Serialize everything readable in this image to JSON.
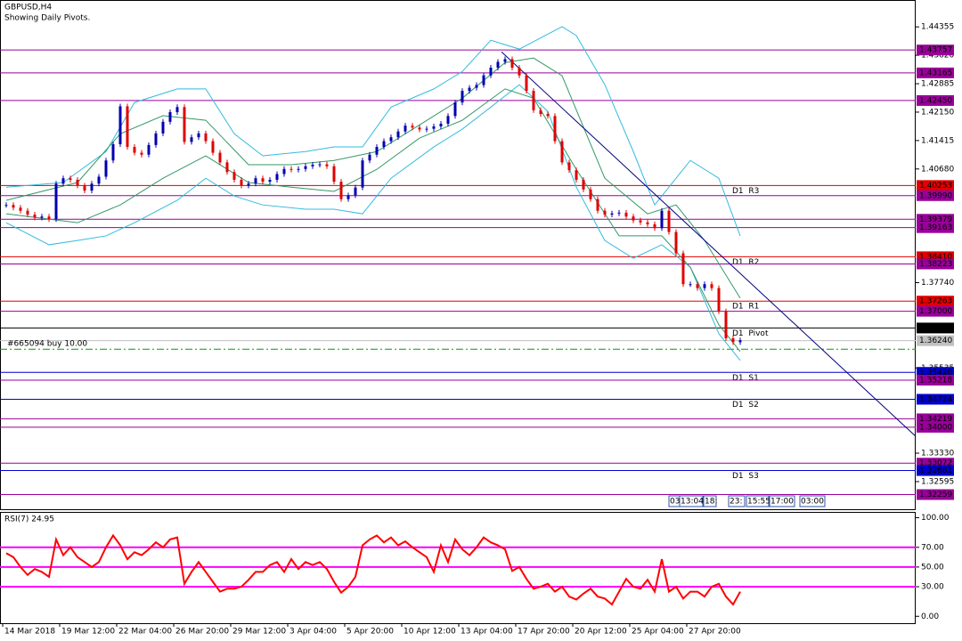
{
  "chart_data": [
    {
      "type": "candlestick",
      "title": "GBPUSD,H4",
      "subtitle": "Showing Daily Pivots.",
      "xlim": [
        -0.875,
        127.625
      ],
      "ylim": [
        1.3188,
        1.4505
      ],
      "xticks": [
        {
          "value": 0,
          "label": "14 Mar 2018"
        },
        {
          "value": 8,
          "label": "19 Mar 12:00"
        },
        {
          "value": 16,
          "label": "22 Mar 04:00"
        },
        {
          "value": 24,
          "label": "26 Mar 20:00"
        },
        {
          "value": 32,
          "label": "29 Mar 12:00"
        },
        {
          "value": 40,
          "label": "3 Apr 04:00"
        },
        {
          "value": 48,
          "label": "5 Apr 20:00"
        },
        {
          "value": 56,
          "label": "10 Apr 12:00"
        },
        {
          "value": 64,
          "label": "13 Apr 04:00"
        },
        {
          "value": 72,
          "label": "17 Apr 20:00"
        },
        {
          "value": 80,
          "label": "20 Apr 12:00"
        },
        {
          "value": 88,
          "label": "25 Apr 04:00"
        },
        {
          "value": 96,
          "label": "27 Apr 20:00"
        }
      ],
      "yticks": [
        1.44355,
        {
          "value": 1.4362,
          "label": "1.43620"
        },
        1.42885,
        {
          "value": 1.4215,
          "label": "1.42150"
        },
        1.41415,
        {
          "value": 1.4068,
          "label": "1.40680"
        },
        {
          "value": 1.3774,
          "label": "1.37740"
        },
        1.35535,
        {
          "value": 1.3333,
          "label": "1.33330"
        },
        1.32595
      ],
      "up_color": "#0000b0",
      "down_color": "#e00000",
      "values": [
        1.3975,
        1.3968,
        1.396,
        1.395,
        1.3942,
        1.3945,
        1.3938,
        1.403,
        1.4044,
        1.404,
        1.4025,
        1.4012,
        1.403,
        1.4048,
        1.409,
        1.4132,
        1.423,
        1.4125,
        1.411,
        1.4105,
        1.413,
        1.416,
        1.419,
        1.4215,
        1.4228,
        1.4138,
        1.415,
        1.416,
        1.414,
        1.411,
        1.4085,
        1.406,
        1.404,
        1.4025,
        1.403,
        1.4044,
        1.4035,
        1.404,
        1.4055,
        1.4068,
        1.4066,
        1.4068,
        1.4075,
        1.4079,
        1.408,
        1.4075,
        1.4035,
        1.399,
        1.4,
        1.402,
        1.409,
        1.4105,
        1.4125,
        1.414,
        1.415,
        1.4165,
        1.418,
        1.4175,
        1.417,
        1.4172,
        1.4178,
        1.4185,
        1.4205,
        1.424,
        1.427,
        1.4278,
        1.4285,
        1.431,
        1.433,
        1.4345,
        1.4352,
        1.433,
        1.431,
        1.427,
        1.422,
        1.421,
        1.4205,
        1.414,
        1.4085,
        1.4065,
        1.404,
        1.4015,
        1.399,
        1.396,
        1.395,
        1.3953,
        1.3955,
        1.3945,
        1.3935,
        1.393,
        1.3925,
        1.3915,
        1.396,
        1.3905,
        1.385,
        1.377,
        1.377,
        1.376,
        1.377,
        1.376,
        1.37,
        1.363,
        1.362,
        1.3625
      ],
      "bands": [
        {
          "color": "#33bbdd",
          "x": [
            0,
            8,
            14,
            18,
            24,
            28,
            32,
            36,
            42,
            46,
            50,
            54,
            60,
            64,
            68,
            72,
            78,
            80,
            84,
            88,
            91,
            94,
            96,
            100,
            103
          ],
          "values": [
            1.4021,
            1.4033,
            1.4113,
            1.424,
            1.4275,
            1.4275,
            1.4159,
            1.4102,
            1.4113,
            1.4125,
            1.4125,
            1.4228,
            1.4275,
            1.432,
            1.4401,
            1.4378,
            1.4436,
            1.4413,
            1.4286,
            1.4113,
            1.3975,
            1.4044,
            1.409,
            1.4044,
            1.3895
          ]
        },
        {
          "color": "#33bbdd",
          "x": [
            0,
            6,
            10,
            14,
            18,
            24,
            28,
            32,
            36,
            42,
            46,
            50,
            54,
            60,
            64,
            68,
            72,
            76,
            80,
            84,
            88,
            92,
            96,
            100,
            103
          ],
          "values": [
            1.3929,
            1.3872,
            1.3883,
            1.3895,
            1.3929,
            1.3987,
            1.4044,
            1.3998,
            1.3975,
            1.3964,
            1.3964,
            1.3952,
            1.4044,
            1.4125,
            1.4171,
            1.4228,
            1.4286,
            1.4217,
            1.4021,
            1.3883,
            1.3837,
            1.3872,
            1.3814,
            1.3642,
            1.3573
          ]
        },
        {
          "color": "#339966",
          "x": [
            0,
            10,
            16,
            22,
            28,
            34,
            40,
            46,
            52,
            58,
            64,
            70,
            74,
            78,
            84,
            90,
            94,
            98,
            103
          ],
          "values": [
            1.3987,
            1.4033,
            1.4159,
            1.4206,
            1.4194,
            1.4079,
            1.4079,
            1.409,
            1.4113,
            1.4182,
            1.4251,
            1.4343,
            1.4355,
            1.4309,
            1.4044,
            1.3952,
            1.3975,
            1.3883,
            1.3734
          ]
        },
        {
          "color": "#339966",
          "x": [
            0,
            10,
            16,
            22,
            28,
            34,
            40,
            46,
            52,
            58,
            64,
            70,
            74,
            80,
            86,
            92,
            96,
            100,
            103
          ],
          "values": [
            1.3952,
            1.3929,
            1.3975,
            1.4044,
            1.4102,
            1.4033,
            1.4021,
            1.401,
            1.4067,
            1.4148,
            1.4194,
            1.4275,
            1.4251,
            1.4067,
            1.3895,
            1.3895,
            1.3814,
            1.3665,
            1.3596
          ]
        }
      ],
      "trendline": {
        "color": "#000080",
        "x": [
          69.5,
          127.6
        ],
        "values": [
          1.4371,
          1.3377
        ]
      },
      "levels": [
        {
          "value": 1.43757,
          "color": "#990099"
        },
        {
          "value": 1.43165,
          "color": "#990099"
        },
        {
          "value": 1.4245,
          "label": "1.42450",
          "color": "#990099"
        },
        {
          "value": 1.40253,
          "color": "#e00000",
          "tag": "D1  R3"
        },
        {
          "value": 1.3999,
          "label": "1.39990",
          "color": "#990099"
        },
        {
          "value": 1.39379,
          "color": "#990099"
        },
        {
          "value": 1.39163,
          "color": "#990099"
        },
        {
          "value": 1.3841,
          "label": "1.38410",
          "color": "#e00000",
          "tag": "D1  R2"
        },
        {
          "value": 1.38223,
          "color": "#990099"
        },
        {
          "value": 1.37263,
          "color": "#e00000",
          "tag": "D1  R1"
        },
        {
          "value": 1.37,
          "label": "1.37000",
          "color": "#990099"
        },
        {
          "value": 1.36567,
          "color": "#000000",
          "tag": "D1  Pivot"
        },
        {
          "value": 1.3624,
          "label": "1.36240",
          "color": "#c0c0c0"
        },
        {
          "value": 1.3542,
          "label": "1.35420",
          "color": "#0000cc",
          "tag": "D1  S1"
        },
        {
          "value": 1.35218,
          "color": "#990099"
        },
        {
          "value": 1.34724,
          "color": "#0000cc",
          "tag": "D1  S2"
        },
        {
          "value": 1.34219,
          "color": "#990099"
        },
        {
          "value": 1.34,
          "label": "1.34000",
          "color": "#990099"
        },
        {
          "value": 1.33072,
          "color": "#990099"
        },
        {
          "value": 1.32881,
          "color": "#0000cc",
          "tag": "D1  S3"
        },
        {
          "value": 1.32259,
          "color": "#990099"
        }
      ],
      "order": {
        "label": "#665094 buy 10.00",
        "price": 1.3602,
        "color": "#00a000"
      },
      "time_boxes": [
        "03",
        "13:04",
        "18:",
        "23:",
        "15:55",
        "17:00",
        "03:00"
      ]
    },
    {
      "type": "line",
      "title": "RSI(7) 24.95",
      "ylim": [
        -7,
        105
      ],
      "yticks": [
        {
          "value": 100,
          "label": "100.00"
        },
        {
          "value": 70,
          "label": "70.00"
        },
        {
          "value": 50,
          "label": "50.00"
        },
        {
          "value": 30,
          "label": "30.00"
        },
        {
          "value": 0,
          "label": "0.00"
        }
      ],
      "levels": [
        70,
        50,
        30
      ],
      "level_color": "#ff00ff",
      "series": [
        {
          "color": "#ff0000",
          "values": [
            64,
            60,
            50,
            42,
            48,
            45,
            40,
            78,
            62,
            70,
            60,
            55,
            50,
            55,
            70,
            82,
            72,
            58,
            65,
            62,
            68,
            75,
            70,
            78,
            80,
            33,
            45,
            55,
            45,
            35,
            25,
            28,
            28,
            30,
            37,
            45,
            45,
            52,
            55,
            45,
            58,
            48,
            55,
            52,
            55,
            48,
            35,
            24,
            30,
            40,
            72,
            78,
            82,
            75,
            80,
            72,
            76,
            70,
            65,
            60,
            45,
            72,
            55,
            78,
            68,
            62,
            70,
            80,
            75,
            72,
            68,
            46,
            50,
            38,
            28,
            30,
            33,
            25,
            30,
            20,
            17,
            23,
            28,
            20,
            18,
            12,
            25,
            38,
            30,
            28,
            37,
            25,
            58,
            25,
            30,
            18,
            25,
            25,
            20,
            30,
            33,
            20,
            12,
            24.95
          ]
        }
      ]
    }
  ]
}
